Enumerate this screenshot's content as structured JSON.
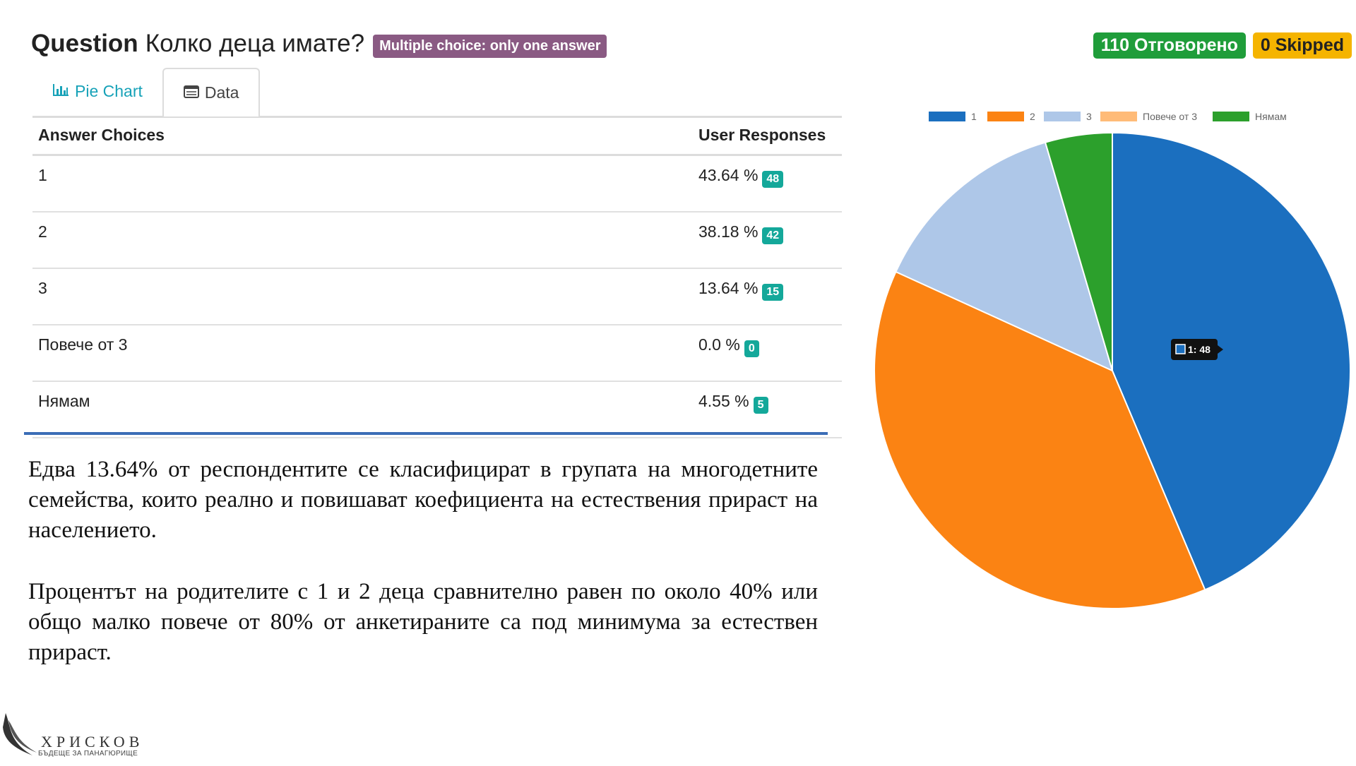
{
  "header": {
    "prefix": "Question",
    "question": "Колко деца имате?",
    "type_badge": "Multiple choice: only one answer",
    "answered": "110 Отговорено",
    "skipped": "0 Skipped"
  },
  "tabs": [
    {
      "label": "Pie Chart",
      "icon": "bar-chart-icon"
    },
    {
      "label": "Data",
      "icon": "table-icon"
    }
  ],
  "table": {
    "headers": {
      "choice": "Answer Choices",
      "responses": "User Responses"
    },
    "rows": [
      {
        "choice": "1",
        "percent": "43.64 %",
        "count": "48"
      },
      {
        "choice": "2",
        "percent": "38.18 %",
        "count": "42"
      },
      {
        "choice": "3",
        "percent": "13.64 %",
        "count": "15"
      },
      {
        "choice": "Повече от 3",
        "percent": "0.0 %",
        "count": "0"
      },
      {
        "choice": "Нямам",
        "percent": "4.55 %",
        "count": "5"
      }
    ]
  },
  "text": {
    "p1": "Едва 13.64% от респондентите се класифицират в групата на многодетните семейства, които реално и повишават коефициента на естествения прираст на населението.",
    "p2": "Процентът на родителите с 1 и 2 деца сравнително равен по около 40% или общо малко повече от 80% от анкетираните са под минимума за естествен прираст."
  },
  "chart_data": {
    "type": "pie",
    "categories": [
      "1",
      "2",
      "3",
      "Повече от 3",
      "Нямам"
    ],
    "values": [
      48,
      42,
      15,
      0,
      5
    ],
    "colors": [
      "#1b6fbf",
      "#fb8313",
      "#aec7e8",
      "#ffbb78",
      "#2ca02c"
    ],
    "legend_position": "top",
    "tooltip": "1: 48"
  },
  "logo": {
    "name": "ХРИСКОВ",
    "tagline": "БЪДЕЩЕ ЗА ПАНАГЮРИЩЕ"
  }
}
